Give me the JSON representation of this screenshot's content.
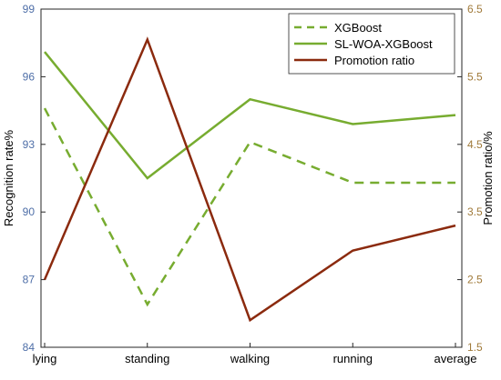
{
  "chart_data": {
    "type": "line",
    "categories": [
      "lying",
      "standing",
      "walking",
      "running",
      "average"
    ],
    "y_left": {
      "label": "Recognition rate%",
      "lim": [
        84,
        99
      ],
      "ticks": [
        84,
        87,
        90,
        93,
        96,
        99
      ],
      "color": "#4f6fa8"
    },
    "y_right": {
      "label": "Promotion ratio/%",
      "lim": [
        1.5,
        6.5
      ],
      "ticks": [
        1.5,
        2.5,
        3.5,
        4.5,
        5.5,
        6.5
      ],
      "color": "#a07a3a"
    },
    "series": [
      {
        "name": "XGBoost",
        "axis": "left",
        "values": [
          94.6,
          85.9,
          93.1,
          91.3,
          91.3
        ],
        "color": "#77ac30",
        "dash": true
      },
      {
        "name": "SL-WOA-XGBoost",
        "axis": "left",
        "values": [
          97.1,
          91.5,
          95.0,
          93.9,
          94.3
        ],
        "color": "#77ac30",
        "dash": false
      },
      {
        "name": "Promotion ratio",
        "axis": "right",
        "values": [
          2.5,
          6.05,
          1.9,
          2.93,
          3.3
        ],
        "color": "#8b2a0e",
        "dash": false
      }
    ],
    "legend_position": "top-right",
    "grid": false
  }
}
